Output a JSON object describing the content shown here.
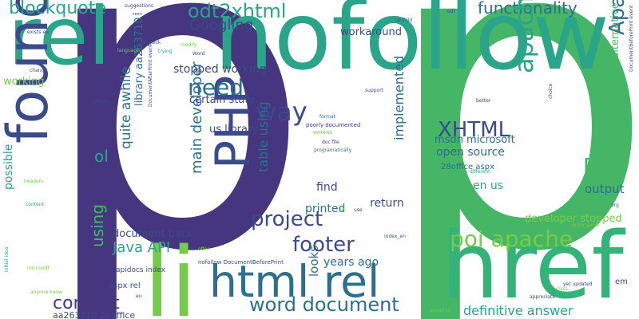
{
  "words": [
    {
      "text": "p",
      "color": "#45367f",
      "size": "huge"
    },
    {
      "text": "p",
      "color": "#45b666",
      "size": "huge"
    },
    {
      "text": "nofollow",
      "color": "#2aa58a",
      "size": "xlarge"
    },
    {
      "text": "rel",
      "color": "#2aa58a",
      "size": "xlarge"
    },
    {
      "text": "li",
      "color": "#77cb4a",
      "size": "xlarge"
    },
    {
      "text": "href",
      "color": "#33b27a",
      "size": "xlarge"
    },
    {
      "text": "found",
      "color": "#3a4a8a",
      "size": "large"
    },
    {
      "text": "PHP",
      "color": "#3a4a8a",
      "size": "large"
    },
    {
      "text": "html rel",
      "color": "#2c6f8e",
      "size": "large"
    },
    {
      "text": "blockquote",
      "color": "#2aa58a",
      "size": "medium"
    },
    {
      "text": "odt2xhtml",
      "color": "#2aa58a",
      "size": "medium"
    },
    {
      "text": "functionality",
      "color": "#2c6f8e",
      "size": "medium"
    },
    {
      "text": "Googling",
      "color": "#3a4a8a",
      "size": "medium"
    },
    {
      "text": "Apache POI",
      "color": "#2c6f8e",
      "size": "medium"
    },
    {
      "text": "apache org",
      "color": "#2aa58a",
      "size": "medium"
    },
    {
      "text": "need",
      "color": "#2c6f8e",
      "size": "medium"
    },
    {
      "text": "way",
      "color": "#3a4a8a",
      "size": "medium"
    },
    {
      "text": "XHTML",
      "color": "#3a4a8a",
      "size": "medium"
    },
    {
      "text": "POI",
      "color": "#45b666",
      "size": "medium"
    },
    {
      "text": "project",
      "color": "#3a4a8a",
      "size": "medium"
    },
    {
      "text": "poi apache",
      "color": "#77cb4a",
      "size": "medium"
    },
    {
      "text": "footer",
      "color": "#3a4a8a",
      "size": "medium"
    },
    {
      "text": "word document",
      "color": "#2c6f8e",
      "size": "medium"
    },
    {
      "text": "convert",
      "color": "#45367f",
      "size": "medium"
    },
    {
      "text": "Java API",
      "color": "#2aa58a",
      "size": "medium"
    },
    {
      "text": "definitive answer",
      "color": "#2aa58a",
      "size": "small"
    },
    {
      "text": "output",
      "color": "#2c6f8e",
      "size": "small"
    },
    {
      "text": "ol",
      "color": "#2aa58a",
      "size": "small"
    },
    {
      "text": "using",
      "color": "#45b666",
      "size": "small"
    },
    {
      "text": "main developer",
      "color": "#2c6f8e",
      "size": "small"
    },
    {
      "text": "table using",
      "color": "#2c6f8e",
      "size": "small"
    },
    {
      "text": "implemented",
      "color": "#2c6f8e",
      "size": "small"
    },
    {
      "text": "open source",
      "color": "#2c6f8e",
      "size": "small"
    },
    {
      "text": "stopped working",
      "color": "#3a4a8a",
      "size": "small"
    },
    {
      "text": "certain state",
      "color": "#3a4a8a",
      "size": "small"
    },
    {
      "text": "us library",
      "color": "#3a4a8a",
      "size": "small"
    },
    {
      "text": "quite awhile",
      "color": "#2c6f8e",
      "size": "small"
    },
    {
      "text": "library aa263710",
      "color": "#2c6f8e",
      "size": "small"
    },
    {
      "text": "find",
      "color": "#3a4a8a",
      "size": "small"
    },
    {
      "text": "return",
      "color": "#3a4a8a",
      "size": "small"
    },
    {
      "text": "printed",
      "color": "#2c6f8e",
      "size": "small"
    },
    {
      "text": "years ago",
      "color": "#2c6f8e",
      "size": "small"
    },
    {
      "text": "looks",
      "color": "#2c6f8e",
      "size": "small"
    },
    {
      "text": "document back",
      "color": "#3a4a8a",
      "size": "small"
    },
    {
      "text": "possible",
      "color": "#2aa58a",
      "size": "small"
    },
    {
      "text": "en us",
      "color": "#2aa58a",
      "size": "small"
    },
    {
      "text": "developer stopped",
      "color": "#77cb4a",
      "size": "small"
    },
    {
      "text": "msdn microsoft",
      "color": "#2c6f8e",
      "size": "small"
    },
    {
      "text": "source alternative",
      "color": "#45b666",
      "size": "small"
    },
    {
      "text": "workaround",
      "color": "#3a4a8a",
      "size": "small"
    },
    {
      "text": "working",
      "color": "#77cb4a",
      "size": "small"
    },
    {
      "text": "28office aspx",
      "color": "#2c6f8e",
      "size": "tiny"
    },
    {
      "text": "aspx rel",
      "color": "#3a4a8a",
      "size": "tiny"
    },
    {
      "text": "apidocs index",
      "color": "#3a4a8a",
      "size": "tiny"
    },
    {
      "text": "aa263710 28office",
      "color": "#3a4a8a",
      "size": "tiny"
    },
    {
      "text": "nofollow DocumentBeforePrint",
      "color": "#3a4a8a",
      "size": "micro"
    },
    {
      "text": "poorly documented",
      "color": "#45367f",
      "size": "micro"
    },
    {
      "text": "doc file",
      "color": "#45367f",
      "size": "micro"
    },
    {
      "text": "programatically",
      "color": "#2c6f8e",
      "size": "micro"
    },
    {
      "text": "format",
      "color": "#2c6f8e",
      "size": "micro"
    },
    {
      "text": "WARNING",
      "color": "#77cb4a",
      "size": "micro"
    },
    {
      "text": "em",
      "color": "#3a4a8a",
      "size": "tiny"
    },
    {
      "text": "DocumentAfterPrint event",
      "color": "#3a4a8a",
      "size": "micro"
    },
    {
      "text": "DocumentBeforePrint event",
      "color": "#3a4a8a",
      "size": "micro"
    },
    {
      "text": "suggestions",
      "color": "#3a4a8a",
      "size": "micro"
    },
    {
      "text": "seen",
      "color": "#3a4a8a",
      "size": "micro"
    },
    {
      "text": "exists en",
      "color": "#3a4a8a",
      "size": "micro"
    },
    {
      "text": "hapf quick",
      "color": "#3a4a8a",
      "size": "micro"
    },
    {
      "text": "language",
      "color": "#77cb4a",
      "size": "micro"
    },
    {
      "text": "trying",
      "color": "#2aa58a",
      "size": "micro"
    },
    {
      "text": "modify",
      "color": "#77cb4a",
      "size": "micro"
    },
    {
      "text": "Word",
      "color": "#3a4a8a",
      "size": "micro"
    },
    {
      "text": "twofold",
      "color": "#2c6f8e",
      "size": "micro"
    },
    {
      "text": "odt",
      "color": "#3a4a8a",
      "size": "micro"
    },
    {
      "text": "change",
      "color": "#3a4a8a",
      "size": "micro"
    },
    {
      "text": "offsets",
      "color": "#3a4a8a",
      "size": "micro"
    },
    {
      "text": "better",
      "color": "#3a4a8a",
      "size": "micro"
    },
    {
      "text": "choice",
      "color": "#3a4a8a",
      "size": "micro"
    },
    {
      "text": "support",
      "color": "#3a4a8a",
      "size": "micro"
    },
    {
      "text": "different",
      "color": "#2aa58a",
      "size": "micro"
    },
    {
      "text": "quick guide",
      "color": "#77cb4a",
      "size": "micro"
    },
    {
      "text": "org",
      "color": "#2c6f8e",
      "size": "micro"
    },
    {
      "text": "offer",
      "color": "#77cb4a",
      "size": "micro"
    },
    {
      "text": "index_en",
      "color": "#3a4a8a",
      "size": "micro"
    },
    {
      "text": "yet updated",
      "color": "#3a4a8a",
      "size": "micro"
    },
    {
      "text": "class",
      "color": "#77cb4a",
      "size": "micro"
    },
    {
      "text": "appreciate",
      "color": "#3a4a8a",
      "size": "micro"
    },
    {
      "text": "question",
      "color": "#77cb4a",
      "size": "micro"
    },
    {
      "text": "eu",
      "color": "#3a4a8a",
      "size": "micro"
    },
    {
      "text": "anyone know",
      "color": "#77cb4a",
      "size": "micro"
    },
    {
      "text": "initial idea",
      "color": "#2aa58a",
      "size": "micro"
    },
    {
      "text": "microsoft",
      "color": "#77cb4a",
      "size": "micro"
    },
    {
      "text": "headers",
      "color": "#77cb4a",
      "size": "micro"
    },
    {
      "text": "content",
      "color": "#2aa58a",
      "size": "micro"
    },
    {
      "text": "use",
      "color": "#3a4a8a",
      "size": "micro"
    },
    {
      "text": "ui",
      "color": "#77cb4a",
      "size": "micro"
    }
  ]
}
